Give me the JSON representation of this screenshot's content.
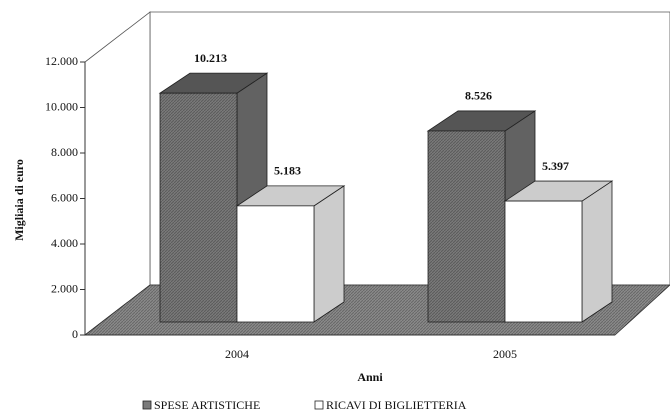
{
  "chart_data": {
    "type": "bar3d",
    "ylabel": "Migliaia di euro",
    "xlabel": "Anni",
    "categories": [
      "2004",
      "2005"
    ],
    "series": [
      {
        "name": "SPESE ARTISTICHE",
        "color": "#7a7a7a",
        "values": [
          10213,
          8526
        ],
        "value_labels": [
          "10.213",
          "8.526"
        ]
      },
      {
        "name": "RICAVI DI BIGLIETTERIA",
        "color": "#ffffff",
        "values": [
          5183,
          5397
        ],
        "value_labels": [
          "5.183",
          "5.397"
        ]
      }
    ],
    "ylim": [
      0,
      12000
    ],
    "yticks": [
      0,
      {
        "value": 2000,
        "label": "2.000"
      },
      {
        "value": 4000,
        "label": "4.000"
      },
      {
        "value": 6000,
        "label": "6.000"
      },
      {
        "value": 8000,
        "label": "8.000"
      },
      {
        "value": 10000,
        "label": "10.000"
      },
      {
        "value": 12000,
        "label": "12.000"
      }
    ],
    "legend": "bottom"
  }
}
